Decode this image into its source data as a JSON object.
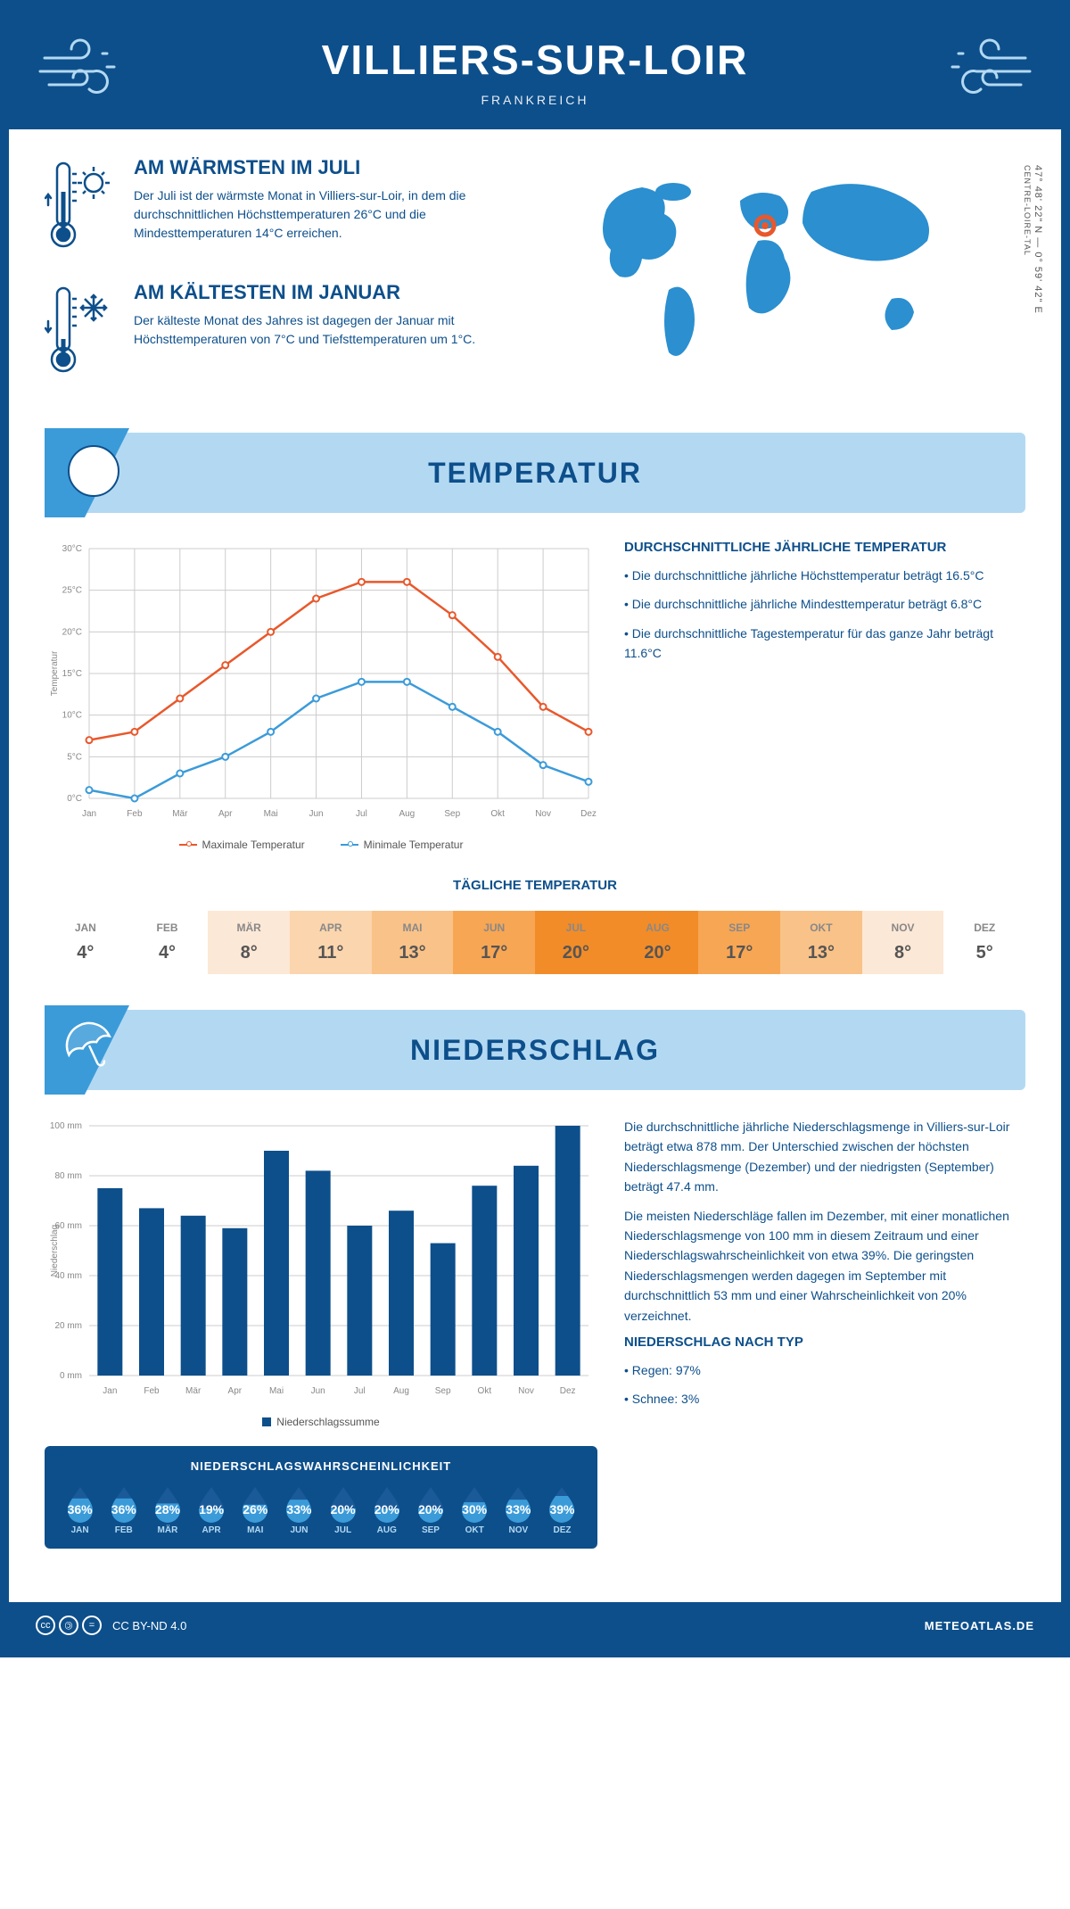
{
  "header": {
    "title": "VILLIERS-SUR-LOIR",
    "subtitle": "FRANKREICH"
  },
  "intro": {
    "warm": {
      "title": "AM WÄRMSTEN IM JULI",
      "text": "Der Juli ist der wärmste Monat in Villiers-sur-Loir, in dem die durchschnittlichen Höchsttemperaturen 26°C und die Mindesttemperaturen 14°C erreichen."
    },
    "cold": {
      "title": "AM KÄLTESTEN IM JANUAR",
      "text": "Der kälteste Monat des Jahres ist dagegen der Januar mit Höchsttemperaturen von 7°C und Tiefsttemperaturen um 1°C."
    },
    "coords": "47° 48' 22\" N — 0° 59' 42\" E",
    "region": "CENTRE-LOIRE-TAL"
  },
  "temp_section": {
    "heading": "TEMPERATUR",
    "chart": {
      "months": [
        "Jan",
        "Feb",
        "Mär",
        "Apr",
        "Mai",
        "Jun",
        "Jul",
        "Aug",
        "Sep",
        "Okt",
        "Nov",
        "Dez"
      ],
      "max_temp": [
        7,
        8,
        12,
        16,
        20,
        24,
        26,
        26,
        22,
        17,
        11,
        8
      ],
      "min_temp": [
        1,
        0,
        3,
        5,
        8,
        12,
        14,
        14,
        11,
        8,
        4,
        2
      ],
      "max_color": "#e8582c",
      "min_color": "#3b9bd9",
      "grid_color": "#cccccc",
      "ymin": 0,
      "ymax": 30,
      "ystep": 5,
      "ylabel": "Temperatur",
      "legend_max": "Maximale Temperatur",
      "legend_min": "Minimale Temperatur"
    },
    "desc": {
      "title": "DURCHSCHNITTLICHE JÄHRLICHE TEMPERATUR",
      "bullets": [
        "Die durchschnittliche jährliche Höchsttemperatur beträgt 16.5°C",
        "Die durchschnittliche jährliche Mindesttemperatur beträgt 6.8°C",
        "Die durchschnittliche Tagestemperatur für das ganze Jahr beträgt 11.6°C"
      ]
    },
    "daily": {
      "title": "TÄGLICHE TEMPERATUR",
      "months": [
        "JAN",
        "FEB",
        "MÄR",
        "APR",
        "MAI",
        "JUN",
        "JUL",
        "AUG",
        "SEP",
        "OKT",
        "NOV",
        "DEZ"
      ],
      "values": [
        "4°",
        "4°",
        "8°",
        "11°",
        "13°",
        "17°",
        "20°",
        "20°",
        "17°",
        "13°",
        "8°",
        "5°"
      ],
      "colors": [
        "#ffffff",
        "#ffffff",
        "#fce8d6",
        "#fbd5ad",
        "#f9c288",
        "#f7a654",
        "#f28c28",
        "#f28c28",
        "#f7a654",
        "#f9c288",
        "#fce8d6",
        "#ffffff"
      ]
    }
  },
  "precip_section": {
    "heading": "NIEDERSCHLAG",
    "chart": {
      "months": [
        "Jan",
        "Feb",
        "Mär",
        "Apr",
        "Mai",
        "Jun",
        "Jul",
        "Aug",
        "Sep",
        "Okt",
        "Nov",
        "Dez"
      ],
      "values": [
        75,
        67,
        64,
        59,
        90,
        82,
        60,
        66,
        53,
        76,
        84,
        100
      ],
      "bar_color": "#0d4f8b",
      "grid_color": "#cccccc",
      "ymax": 100,
      "ystep": 20,
      "ylabel": "Niederschlag",
      "legend": "Niederschlagssumme"
    },
    "desc": {
      "p1": "Die durchschnittliche jährliche Niederschlagsmenge in Villiers-sur-Loir beträgt etwa 878 mm. Der Unterschied zwischen der höchsten Niederschlagsmenge (Dezember) und der niedrigsten (September) beträgt 47.4 mm.",
      "p2": "Die meisten Niederschläge fallen im Dezember, mit einer monatlichen Niederschlagsmenge von 100 mm in diesem Zeitraum und einer Niederschlagswahrscheinlichkeit von etwa 39%. Die geringsten Niederschlagsmengen werden dagegen im September mit durchschnittlich 53 mm und einer Wahrscheinlichkeit von 20% verzeichnet.",
      "type_title": "NIEDERSCHLAG NACH TYP",
      "type_bullets": [
        "Regen: 97%",
        "Schnee: 3%"
      ]
    },
    "prob": {
      "title": "NIEDERSCHLAGSWAHRSCHEINLICHKEIT",
      "months": [
        "JAN",
        "FEB",
        "MÄR",
        "APR",
        "MAI",
        "JUN",
        "JUL",
        "AUG",
        "SEP",
        "OKT",
        "NOV",
        "DEZ"
      ],
      "values": [
        "36%",
        "36%",
        "28%",
        "19%",
        "26%",
        "33%",
        "20%",
        "20%",
        "20%",
        "30%",
        "33%",
        "39%"
      ],
      "fills": [
        0.9,
        0.9,
        0.7,
        0.5,
        0.65,
        0.85,
        0.5,
        0.5,
        0.5,
        0.75,
        0.85,
        1.0
      ],
      "drop_fill": "#3b9bd9",
      "drop_empty": "#1a5a99"
    }
  },
  "footer": {
    "license": "CC BY-ND 4.0",
    "site": "METEOATLAS.DE"
  }
}
